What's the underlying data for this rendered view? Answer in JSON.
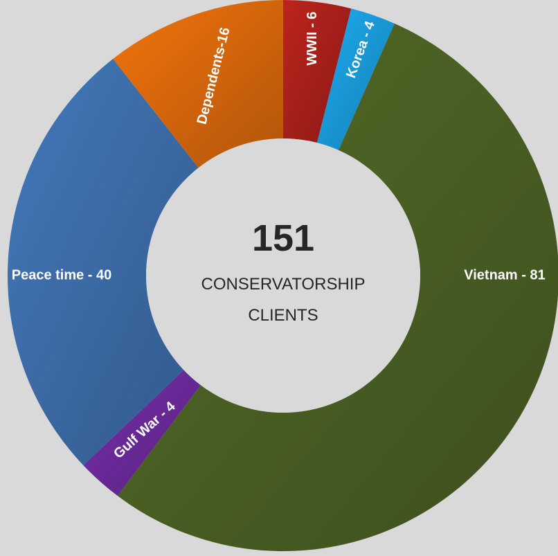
{
  "chart_data": {
    "type": "pie",
    "style": "donut",
    "center": {
      "total": "151",
      "caption_line1": "CONSERVATORSHIP",
      "caption_line2": "CLIENTS"
    },
    "slices": [
      {
        "name": "WWII",
        "value": 6,
        "label": "WWII - 6",
        "color": "#a8201a"
      },
      {
        "name": "Korea",
        "value": 4,
        "label": "Korea - 4",
        "color": "#1a9ad8"
      },
      {
        "name": "Vietnam",
        "value": 81,
        "label": "Vietnam - 81",
        "color": "#4a6024"
      },
      {
        "name": "Gulf War",
        "value": 4,
        "label": "Gulf War - 4",
        "color": "#6a2a9a"
      },
      {
        "name": "Peace time",
        "value": 40,
        "label": "Peace time - 40",
        "color": "#3d6ca8"
      },
      {
        "name": "Dependents",
        "value": 16,
        "label": "Dependents-16",
        "color": "#d8680c"
      }
    ]
  },
  "colors": {
    "background": "#d9d9d9",
    "center_fill": "#d9d9d9",
    "text_dark": "#262626",
    "text_light": "#ffffff"
  }
}
